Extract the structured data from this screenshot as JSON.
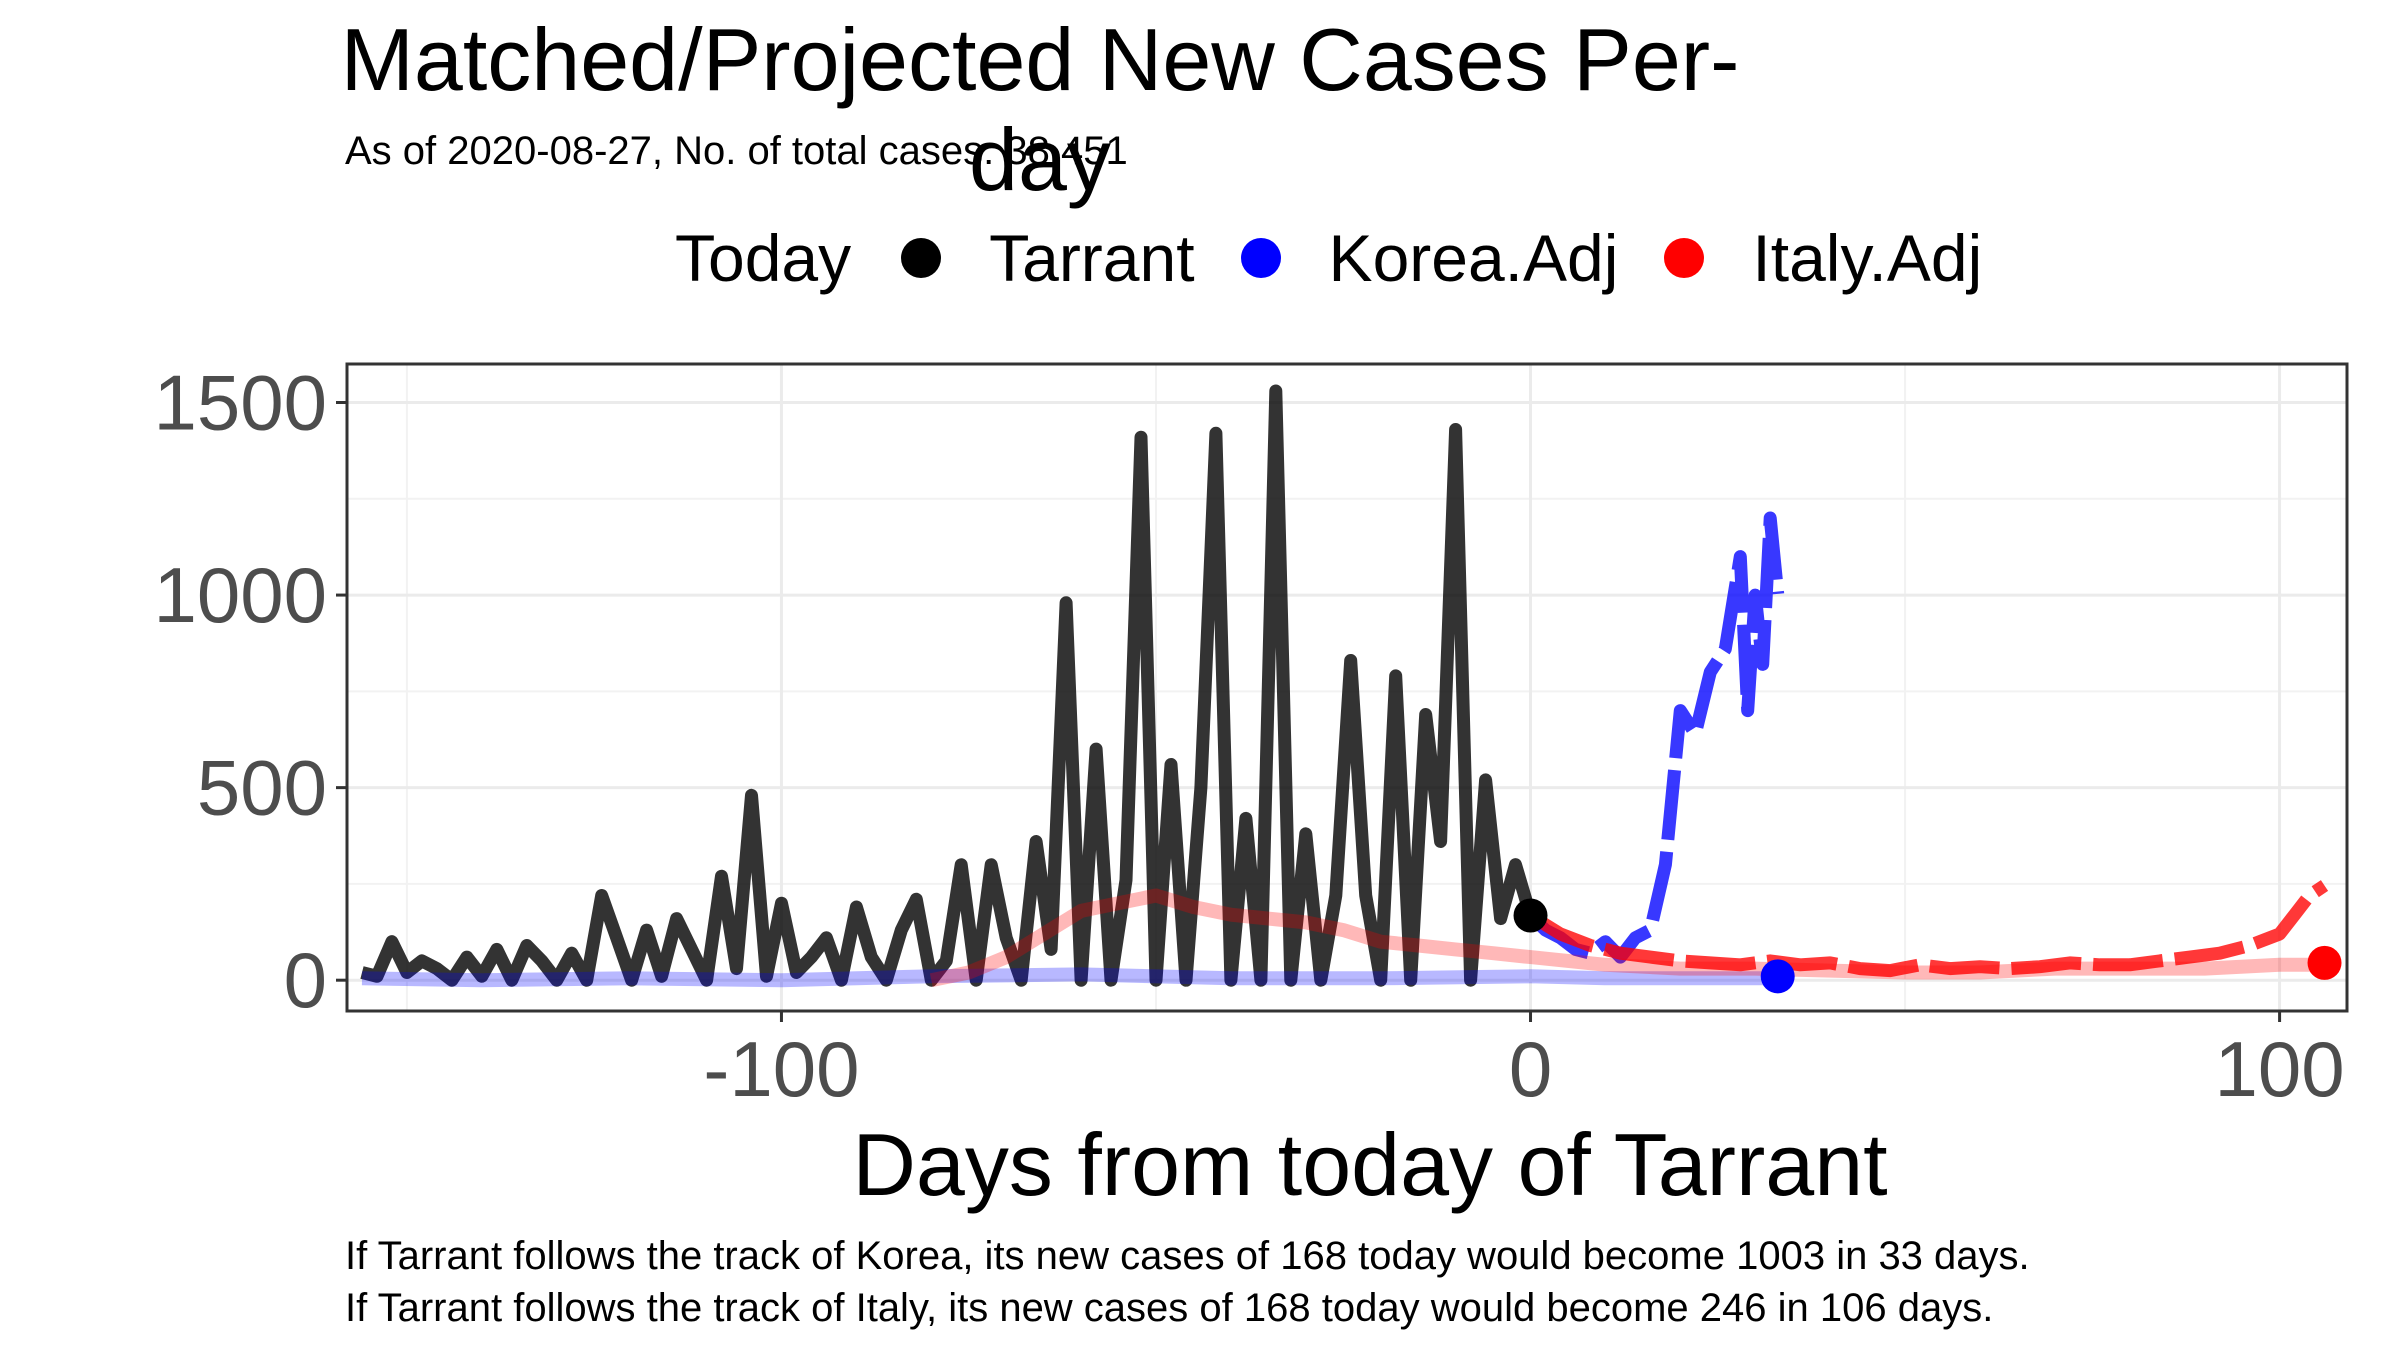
{
  "chart_data": {
    "type": "line",
    "title": "Matched/Projected New Cases Per-day",
    "subtitle": "As of 2020-08-27, No. of total cases: 38,451",
    "xlabel": "Days from today of Tarrant",
    "ylabel": "",
    "xlim": [
      -158,
      109
    ],
    "ylim": [
      -80,
      1600
    ],
    "x_ticks": [
      -100,
      0,
      100
    ],
    "x_tick_labels": [
      "-100",
      "0",
      "100"
    ],
    "y_ticks": [
      0,
      500,
      1000,
      1500
    ],
    "y_tick_labels": [
      "0",
      "500",
      "1000",
      "1500"
    ],
    "grid": true,
    "legend": {
      "title": "Today",
      "position": "top",
      "entries": [
        {
          "label": "Tarrant",
          "color": "#000000"
        },
        {
          "label": "Korea.Adj",
          "color": "#0000ff"
        },
        {
          "label": "Italy.Adj",
          "color": "#ff0000"
        }
      ]
    },
    "series": [
      {
        "name": "Tarrant",
        "color": "#000000",
        "x": [
          -156,
          -154,
          -152,
          -150,
          -148,
          -146,
          -144,
          -142,
          -140,
          -138,
          -136,
          -134,
          -132,
          -130,
          -128,
          -126,
          -124,
          -122,
          -120,
          -118,
          -116,
          -114,
          -112,
          -110,
          -108,
          -106,
          -104,
          -102,
          -100,
          -98,
          -96,
          -94,
          -92,
          -90,
          -88,
          -86,
          -84,
          -82,
          -80,
          -78,
          -76,
          -74,
          -72,
          -70,
          -68,
          -66,
          -64,
          -62,
          -60,
          -58,
          -56,
          -54,
          -52,
          -50,
          -48,
          -46,
          -44,
          -42,
          -40,
          -38,
          -36,
          -34,
          -32,
          -30,
          -28,
          -26,
          -24,
          -22,
          -20,
          -18,
          -16,
          -14,
          -12,
          -10,
          -8,
          -6,
          -4,
          -2,
          0
        ],
        "y": [
          20,
          10,
          100,
          20,
          50,
          30,
          0,
          60,
          10,
          80,
          0,
          90,
          50,
          0,
          70,
          0,
          220,
          110,
          0,
          130,
          10,
          160,
          80,
          0,
          270,
          30,
          480,
          10,
          200,
          20,
          60,
          110,
          0,
          190,
          60,
          0,
          130,
          210,
          0,
          50,
          300,
          0,
          300,
          110,
          0,
          360,
          80,
          980,
          0,
          600,
          0,
          260,
          1410,
          0,
          560,
          0,
          500,
          1420,
          0,
          420,
          0,
          1530,
          0,
          380,
          0,
          220,
          830,
          220,
          0,
          790,
          0,
          690,
          360,
          1430,
          0,
          520,
          160,
          300,
          168
        ],
        "style": "solid"
      },
      {
        "name": "Korea.Adj",
        "color": "#0000ff",
        "x": [
          0,
          2,
          4,
          6,
          8,
          10,
          12,
          14,
          16,
          18,
          20,
          22,
          24,
          26,
          28,
          29,
          30,
          31,
          32,
          33
        ],
        "y": [
          168,
          130,
          110,
          80,
          70,
          100,
          60,
          110,
          130,
          300,
          700,
          640,
          800,
          860,
          1100,
          700,
          1000,
          820,
          1200,
          1003
        ],
        "style": "dashed"
      },
      {
        "name": "Korea.Adj (matched)",
        "color": "#0000ff",
        "faded": true,
        "x": [
          -156,
          -140,
          -120,
          -100,
          -80,
          -60,
          -40,
          -20,
          0,
          10,
          20,
          33
        ],
        "y": [
          5,
          0,
          5,
          0,
          10,
          15,
          5,
          5,
          10,
          5,
          5,
          5
        ],
        "style": "solid"
      },
      {
        "name": "Italy.Adj",
        "color": "#ff0000",
        "x": [
          0,
          4,
          8,
          12,
          16,
          20,
          24,
          28,
          32,
          36,
          40,
          44,
          48,
          52,
          56,
          60,
          64,
          68,
          72,
          76,
          80,
          84,
          88,
          92,
          96,
          100,
          102,
          104,
          106
        ],
        "y": [
          168,
          120,
          90,
          70,
          60,
          50,
          45,
          40,
          50,
          40,
          45,
          30,
          25,
          40,
          30,
          35,
          30,
          35,
          45,
          40,
          40,
          50,
          60,
          70,
          90,
          120,
          170,
          220,
          246
        ],
        "style": "dashed"
      },
      {
        "name": "Italy.Adj (matched)",
        "color": "#ff0000",
        "faded": true,
        "x": [
          -80,
          -75,
          -70,
          -65,
          -60,
          -55,
          -50,
          -45,
          -40,
          -35,
          -30,
          -25,
          -20,
          -15,
          -10,
          -5,
          0,
          10,
          20,
          30,
          40,
          50,
          60,
          70,
          80,
          90,
          100,
          106
        ],
        "y": [
          0,
          20,
          60,
          120,
          180,
          200,
          220,
          190,
          170,
          160,
          150,
          130,
          100,
          90,
          80,
          70,
          60,
          40,
          30,
          30,
          25,
          20,
          20,
          30,
          30,
          30,
          40,
          40
        ],
        "style": "solid"
      }
    ],
    "today_points": [
      {
        "series": "Tarrant",
        "x": 0,
        "y": 168,
        "color": "#000000"
      },
      {
        "series": "Korea.Adj",
        "x": 33,
        "y": 10,
        "color": "#0000ff"
      },
      {
        "series": "Italy.Adj",
        "x": 106,
        "y": 45,
        "color": "#ff0000"
      }
    ],
    "annotations": [
      "If Tarrant follows the track of Korea, its new cases of 168 today would become 1003 in 33 days.",
      "If Tarrant follows the track of Italy, its new cases of 168 today would become 246 in 106 days."
    ]
  }
}
